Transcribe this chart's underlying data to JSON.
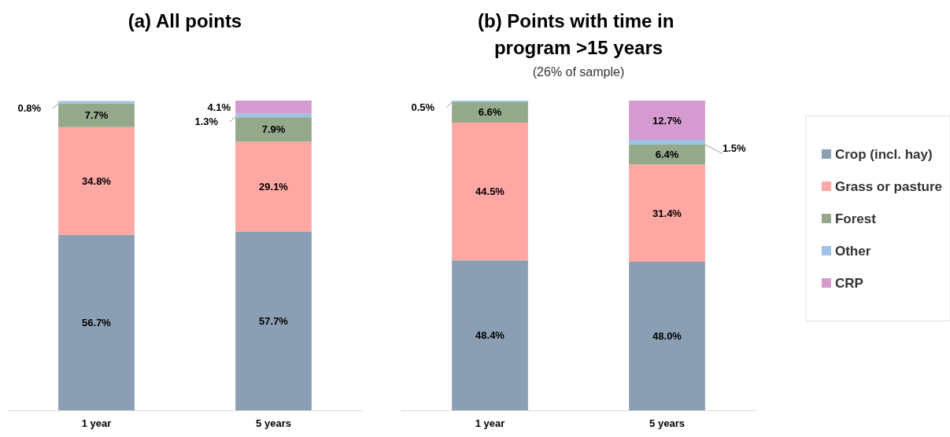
{
  "chart_data": [
    {
      "type": "bar",
      "title": "(a) All points",
      "categories": [
        "1 year",
        "5 years"
      ],
      "stacked": true,
      "tick_labels": "x",
      "grid": false,
      "series": [
        {
          "color": "#8a9fb3",
          "values": [
            56.7,
            57.7
          ],
          "value_labels": [
            "56.7%",
            "57.7%"
          ]
        },
        {
          "color": "#ffa7a3",
          "values": [
            34.8,
            29.1
          ],
          "value_labels": [
            "34.8%",
            "29.1%"
          ]
        },
        {
          "color": "#93a98a",
          "values": [
            7.7,
            7.9
          ],
          "value_labels": [
            "7.7%",
            "7.9%"
          ]
        },
        {
          "color": "#9dc3e6",
          "values": [
            0.8,
            1.3
          ],
          "value_labels": [
            "0.8%",
            "1.3%"
          ]
        },
        {
          "color": "#d59ad0",
          "values": [
            null,
            4.1
          ],
          "value_labels": [
            null,
            "4.1%"
          ]
        }
      ]
    },
    {
      "type": "bar",
      "title": "(b) Points with time in program >15 years",
      "subtitle": "(26% of sample)",
      "categories": [
        "1 year",
        "5 years"
      ],
      "stacked": true,
      "tick_labels": "x",
      "grid": false,
      "legend": "right",
      "series": [
        {
          "name": "Crop (incl. hay)",
          "color": "#8a9fb3",
          "values": [
            48.4,
            48.0
          ],
          "value_labels": [
            "48.4%",
            "48.0%"
          ]
        },
        {
          "name": "Grass or pasture",
          "color": "#ffa7a3",
          "values": [
            44.5,
            31.4
          ],
          "value_labels": [
            "44.5%",
            "31.4%"
          ]
        },
        {
          "name": "Forest",
          "color": "#93a98a",
          "values": [
            6.6,
            6.4
          ],
          "value_labels": [
            "6.6%",
            "6.4%"
          ]
        },
        {
          "name": "Other",
          "color": "#9dc3e6",
          "values": [
            0.5,
            1.5
          ],
          "value_labels": [
            "0.5%",
            "1.5%"
          ]
        },
        {
          "name": "CRP",
          "color": "#d59ad0",
          "values": [
            null,
            12.7
          ],
          "value_labels": [
            null,
            "12.7%"
          ]
        }
      ]
    }
  ]
}
